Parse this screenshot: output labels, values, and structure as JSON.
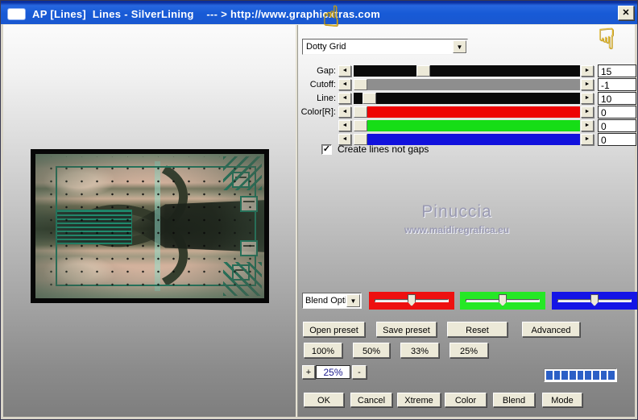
{
  "window": {
    "title": "AP [Lines]  Lines - SilverLining    --- > http://www.graphicxtras.com"
  },
  "icons": {
    "close": "✕",
    "dropdown_arrow": "▼",
    "left_arrow": "◄",
    "right_arrow": "►",
    "check": "✓",
    "hand_up": "☝",
    "hand_down": "☟"
  },
  "preset_dropdown": {
    "value": "Dotty Grid"
  },
  "sliders": [
    {
      "label": "Gap:",
      "value": "15",
      "track_color": "#0a0a0a"
    },
    {
      "label": "Cutoff:",
      "value": "-1",
      "track_color": "#8e8e8e"
    },
    {
      "label": "Line:",
      "value": "10",
      "track_color": "#0a0a0a"
    },
    {
      "label": "Color[R]:",
      "value": "0",
      "track_color": "#ee0404"
    },
    {
      "label": "",
      "value": "0",
      "track_color": "#16dd16"
    },
    {
      "label": "",
      "value": "0",
      "track_color": "#1111dd"
    }
  ],
  "checkbox": {
    "label": "Create lines not gaps",
    "checked": true
  },
  "watermark": {
    "line1": "Pinuccia",
    "line2": "www.maidiregrafica.eu"
  },
  "blend": {
    "dropdown_value": "Blend Opti",
    "sliders": [
      {
        "name": "red",
        "color": "#ee1010"
      },
      {
        "name": "green",
        "color": "#25e825"
      },
      {
        "name": "blue",
        "color": "#1414e6"
      }
    ]
  },
  "buttons": {
    "row1": [
      "Open preset",
      "Save preset",
      "Reset",
      "Advanced"
    ],
    "row2": [
      "100%",
      "50%",
      "33%",
      "25%"
    ],
    "bottom": [
      "OK",
      "Cancel",
      "Xtreme",
      "Color",
      "Blend",
      "Mode"
    ]
  },
  "zoom_control": {
    "plus": "+",
    "value": "25%",
    "minus": "-"
  },
  "progress": {
    "segments": 9,
    "color": "#2b5fc6"
  },
  "colors": {
    "titlebar": "#175ad6",
    "button_face": "#ece9d8",
    "accent_teal": "#1e7b61"
  }
}
